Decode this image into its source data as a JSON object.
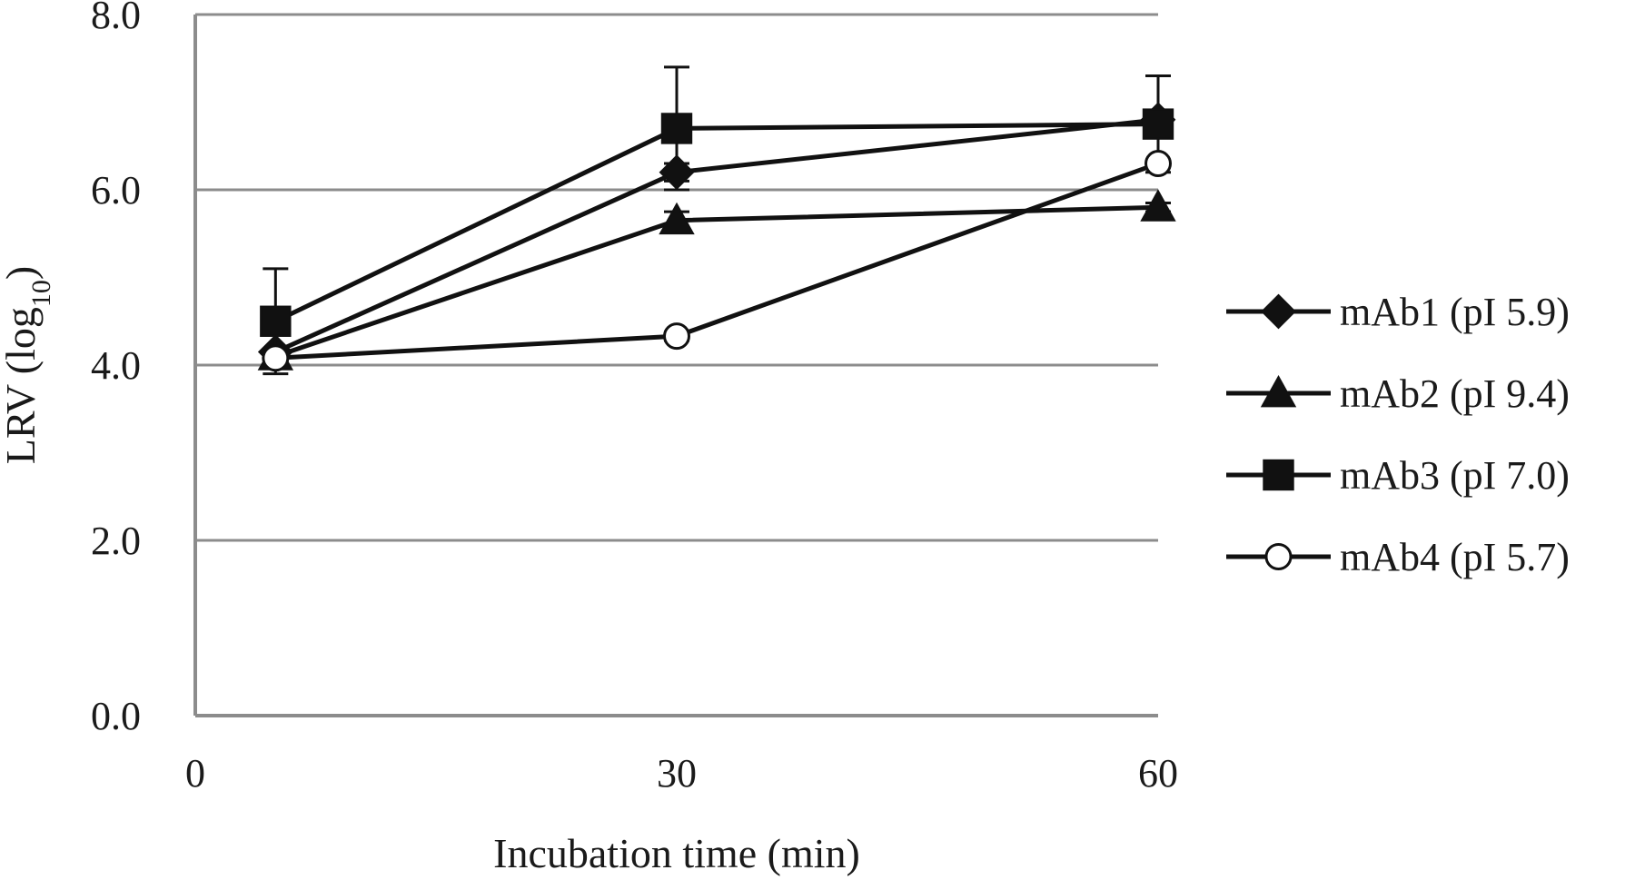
{
  "chart_data": {
    "type": "line",
    "xlabel": "Incubation time (min)",
    "ylabel": {
      "base": "LRV (log",
      "subscript": "10",
      "suffix": ")"
    },
    "xlim": [
      0,
      60
    ],
    "ylim": [
      0,
      8
    ],
    "x_ticks": [
      "0",
      "30",
      "60"
    ],
    "y_ticks": [
      "0.0",
      "2.0",
      "4.0",
      "6.0",
      "8.0"
    ],
    "grid": "horizontal",
    "legend_position": "right",
    "series": [
      {
        "name": "mAb1 (pI 5.9)",
        "marker": "diamond",
        "points": [
          {
            "x": 5,
            "y": 4.15,
            "err": 0.0
          },
          {
            "x": 30,
            "y": 6.2,
            "err": 0.1
          },
          {
            "x": 60,
            "y": 6.8,
            "err": 0.0
          }
        ]
      },
      {
        "name": "mAb2 (pI 9.4)",
        "marker": "triangle",
        "points": [
          {
            "x": 5,
            "y": 4.1,
            "err": 0.0
          },
          {
            "x": 30,
            "y": 5.65,
            "err": 0.1
          },
          {
            "x": 60,
            "y": 5.8,
            "err": 0.05
          }
        ]
      },
      {
        "name": "mAb3 (pI 7.0)",
        "marker": "square",
        "points": [
          {
            "x": 5,
            "y": 4.5,
            "err": 0.6
          },
          {
            "x": 30,
            "y": 6.7,
            "err": 0.7
          },
          {
            "x": 60,
            "y": 6.75,
            "err": 0.55
          }
        ]
      },
      {
        "name": "mAb4 (pI 5.7)",
        "marker": "circle",
        "points": [
          {
            "x": 5,
            "y": 4.08,
            "err": 0.0
          },
          {
            "x": 30,
            "y": 4.33,
            "err": 0.05
          },
          {
            "x": 60,
            "y": 6.3,
            "err": 0.0
          }
        ]
      }
    ]
  }
}
